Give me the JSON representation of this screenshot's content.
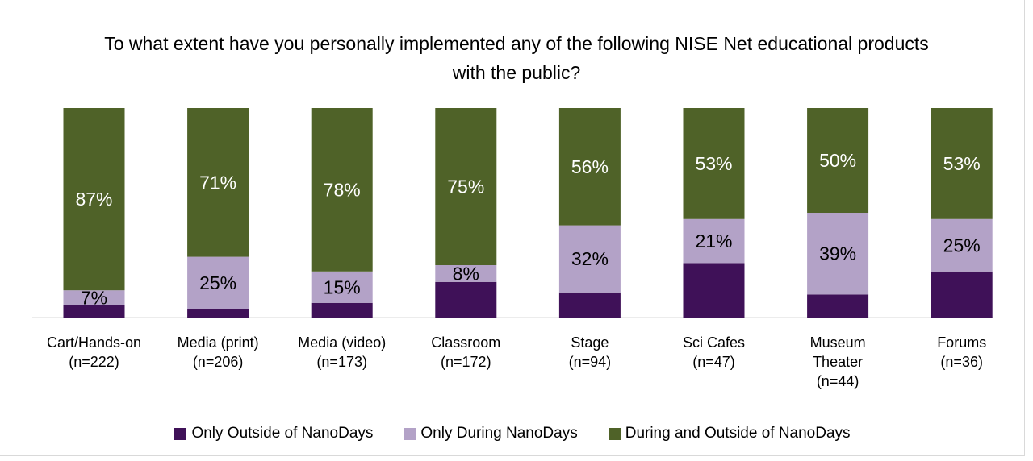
{
  "chart_data": {
    "type": "bar",
    "stacked": true,
    "normalized": true,
    "title": "To what extent have you personally implemented any of the following NISE Net educational products with the public?",
    "categories": [
      [
        "Cart/Hands-on",
        "(n=222)"
      ],
      [
        "Media (print)",
        "(n=206)"
      ],
      [
        "Media (video)",
        "(n=173)"
      ],
      [
        "Classroom",
        "(n=172)"
      ],
      [
        "Stage",
        "(n=94)"
      ],
      [
        "Sci Cafes",
        "(n=47)"
      ],
      [
        "Museum",
        "Theater",
        "(n=44)"
      ],
      [
        "Forums",
        "(n=36)"
      ]
    ],
    "series": [
      {
        "name": "Only Outside of NanoDays",
        "color": "#3f1158",
        "values": [
          6,
          4,
          7,
          17,
          12,
          26,
          11,
          22
        ],
        "labels": [
          "",
          "",
          "",
          "",
          "",
          "",
          "",
          ""
        ]
      },
      {
        "name": "Only During NanoDays",
        "color": "#b3a2c7",
        "values": [
          7,
          25,
          15,
          8,
          32,
          21,
          39,
          25
        ],
        "labels": [
          "7%",
          "25%",
          "15%",
          "8%",
          "32%",
          "21%",
          "39%",
          "25%"
        ]
      },
      {
        "name": "During and Outside of NanoDays",
        "color": "#4f6228",
        "values": [
          87,
          71,
          78,
          75,
          56,
          53,
          50,
          53
        ],
        "labels": [
          "87%",
          "71%",
          "78%",
          "75%",
          "56%",
          "53%",
          "50%",
          "53%"
        ]
      }
    ],
    "ylim": [
      0,
      100
    ],
    "grid": false,
    "legend_position": "bottom"
  }
}
